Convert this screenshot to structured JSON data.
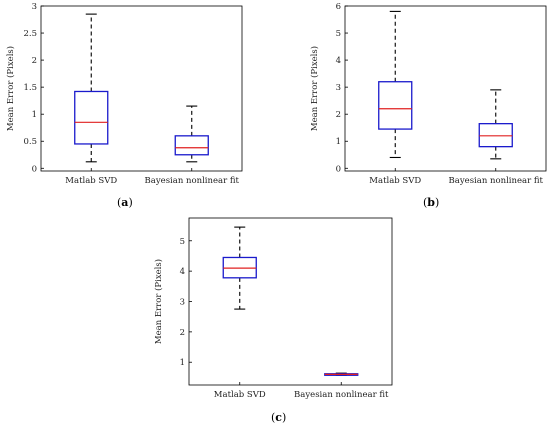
{
  "chart_data": [
    {
      "type": "box",
      "panel_label": "a",
      "ylabel": "Mean Error (Pixels)",
      "xlabel": "",
      "ylim": [
        -0.05,
        3
      ],
      "yticks": [
        0,
        0.5,
        1,
        1.5,
        2,
        2.5,
        3
      ],
      "categories": [
        "Matlab SVD",
        "Bayesian nonlinear fit"
      ],
      "boxes": [
        {
          "whisker_low": 0.12,
          "q1": 0.45,
          "median": 0.85,
          "q3": 1.42,
          "whisker_high": 2.85
        },
        {
          "whisker_low": 0.12,
          "q1": 0.25,
          "median": 0.38,
          "q3": 0.6,
          "whisker_high": 1.15
        }
      ],
      "grid": false
    },
    {
      "type": "box",
      "panel_label": "b",
      "ylabel": "Mean Error (Pixels)",
      "xlabel": "",
      "ylim": [
        -0.1,
        6
      ],
      "yticks": [
        0,
        1,
        2,
        3,
        4,
        5,
        6
      ],
      "categories": [
        "Matlab SVD",
        "Bayesian nonlinear fit"
      ],
      "boxes": [
        {
          "whisker_low": 0.4,
          "q1": 1.45,
          "median": 2.2,
          "q3": 3.2,
          "whisker_high": 5.8
        },
        {
          "whisker_low": 0.35,
          "q1": 0.8,
          "median": 1.2,
          "q3": 1.65,
          "whisker_high": 2.9
        }
      ],
      "grid": false
    },
    {
      "type": "box",
      "panel_label": "c",
      "ylabel": "Mean Error (Pixels)",
      "xlabel": "",
      "ylim": [
        0.25,
        5.75
      ],
      "yticks": [
        1,
        2,
        3,
        4,
        5
      ],
      "categories": [
        "Matlab SVD",
        "Bayesian nonlinear fit"
      ],
      "boxes": [
        {
          "whisker_low": 2.75,
          "q1": 3.78,
          "median": 4.1,
          "q3": 4.45,
          "whisker_high": 5.45
        },
        {
          "whisker_low": 0.57,
          "q1": 0.58,
          "median": 0.6,
          "q3": 0.62,
          "whisker_high": 0.64
        }
      ],
      "grid": false
    }
  ],
  "style": {
    "box_color": "#1a1acc",
    "median_color": "#e02020",
    "whisker_color": "#000000",
    "axis_color": "#000000"
  }
}
